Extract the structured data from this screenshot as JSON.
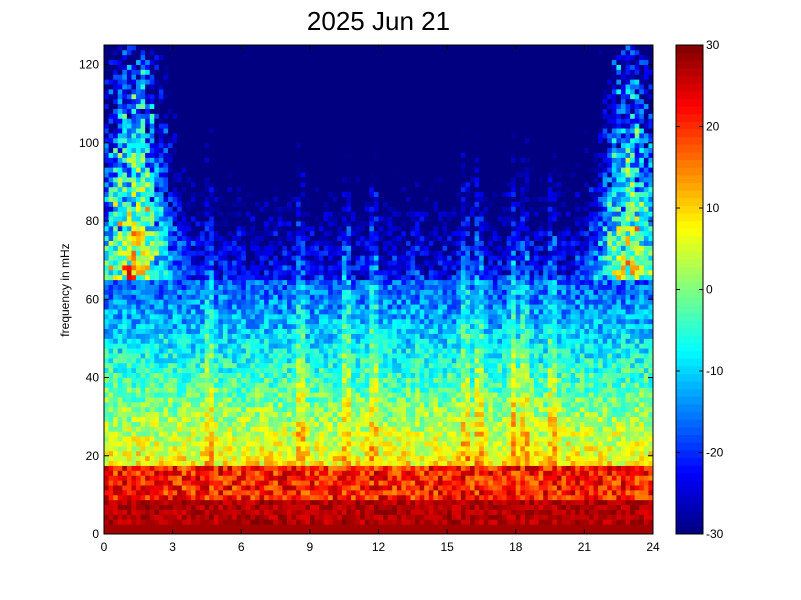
{
  "chart_data": {
    "type": "heatmap",
    "title": "2025 Jun 21",
    "xlabel": "",
    "ylabel": "frequency in mHz",
    "x_ticks": [
      0,
      3,
      6,
      9,
      12,
      15,
      18,
      21,
      24
    ],
    "y_ticks": [
      0,
      20,
      40,
      60,
      80,
      100,
      120
    ],
    "xlim": [
      0,
      24
    ],
    "ylim": [
      0,
      125
    ],
    "colorbar": {
      "ticks": [
        -30,
        -20,
        -10,
        0,
        10,
        20,
        30
      ],
      "range": [
        -30,
        30
      ],
      "colormap": "jet"
    },
    "grid": false
  }
}
